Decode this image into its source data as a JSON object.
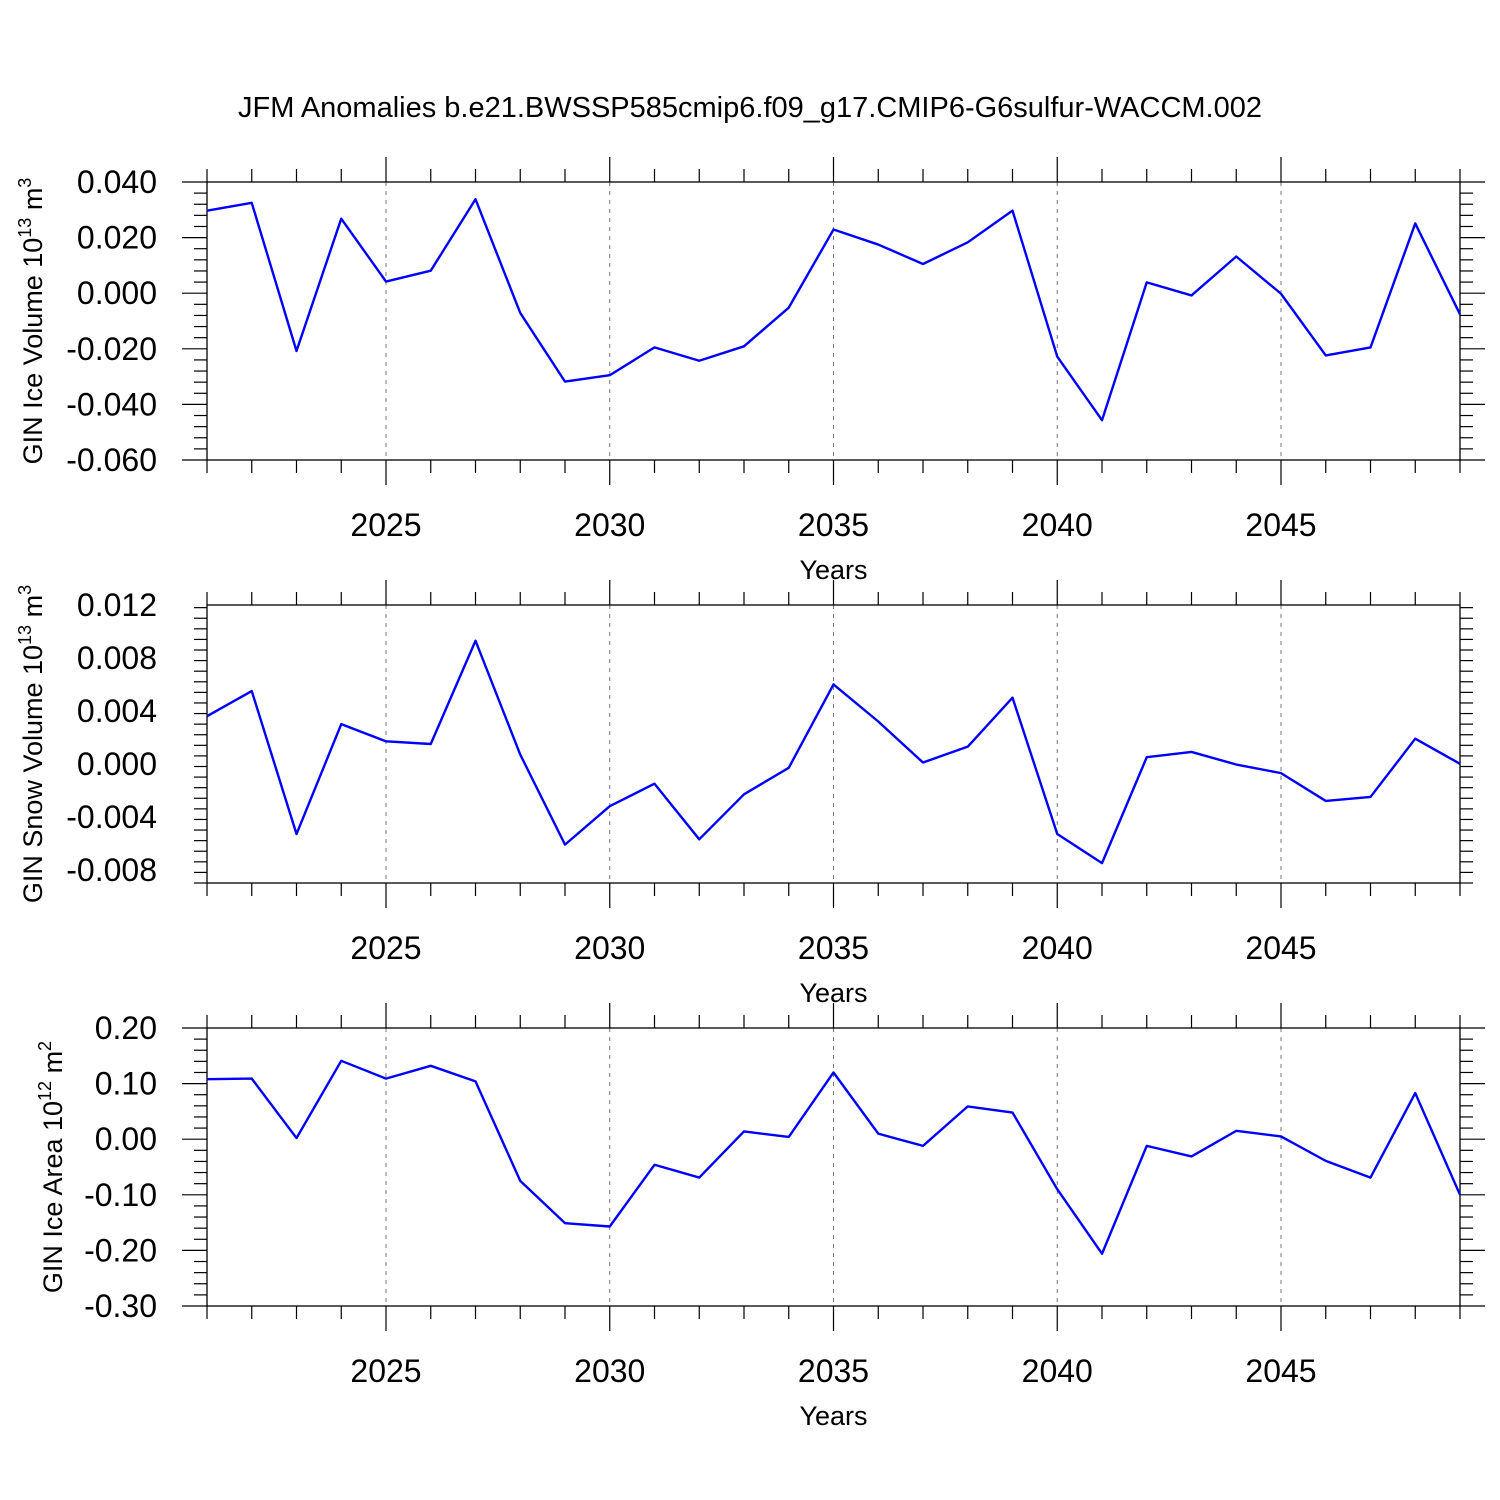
{
  "title": "JFM Anomalies b.e21.BWSSP585cmip6.f09_g17.CMIP6-G6sulfur-WACCM.002",
  "colors": {
    "line": "#0000ff",
    "axis": "#000000",
    "grid": "#777777"
  },
  "chart_data": [
    {
      "type": "line",
      "ylabel_main": "GIN Ice Volume 10",
      "ylabel_sup1": "13",
      "ylabel_mid": " m",
      "ylabel_sup2": "3",
      "xlabel": "Years",
      "xlim": [
        2021,
        2049
      ],
      "ylim": [
        -0.06,
        0.04
      ],
      "yticks": [
        -0.06,
        -0.04,
        -0.02,
        0.0,
        0.02,
        0.04
      ],
      "yticklabels": [
        "-0.060",
        "-0.040",
        "-0.020",
        "0.000",
        "0.020",
        "0.040"
      ],
      "xticks": [
        2025,
        2030,
        2035,
        2040,
        2045
      ],
      "xticklabels": [
        "2025",
        "2030",
        "2035",
        "2040",
        "2045"
      ],
      "x": [
        2021,
        2022,
        2023,
        2024,
        2025,
        2026,
        2027,
        2028,
        2029,
        2030,
        2031,
        2032,
        2033,
        2034,
        2035,
        2036,
        2037,
        2038,
        2039,
        2040,
        2041,
        2042,
        2043,
        2044,
        2045,
        2046,
        2047,
        2048,
        2049
      ],
      "values": [
        0.0297,
        0.0325,
        -0.0208,
        0.0268,
        0.0042,
        0.0081,
        0.0338,
        -0.0071,
        -0.0318,
        -0.0295,
        -0.0195,
        -0.0243,
        -0.0191,
        -0.0052,
        0.0229,
        0.0175,
        0.0105,
        0.0183,
        0.0297,
        -0.0228,
        -0.0457,
        0.0039,
        -0.0008,
        0.0132,
        -0.0002,
        -0.0224,
        -0.0195,
        0.0251,
        -0.0076
      ]
    },
    {
      "type": "line",
      "ylabel_main": "GIN Snow Volume 10",
      "ylabel_sup1": "13",
      "ylabel_mid": " m",
      "ylabel_sup2": "3",
      "xlabel": "Years",
      "xlim": [
        2021,
        2049
      ],
      "ylim": [
        -0.009,
        0.012
      ],
      "yticks": [
        -0.008,
        -0.004,
        0.0,
        0.004,
        0.008,
        0.012
      ],
      "yticklabels": [
        "-0.008",
        "-0.004",
        "0.000",
        "0.004",
        "0.008",
        "0.012"
      ],
      "xticks": [
        2025,
        2030,
        2035,
        2040,
        2045
      ],
      "xticklabels": [
        "2025",
        "2030",
        "2035",
        "2040",
        "2045"
      ],
      "x": [
        2021,
        2022,
        2023,
        2024,
        2025,
        2026,
        2027,
        2028,
        2029,
        2030,
        2031,
        2032,
        2033,
        2034,
        2035,
        2036,
        2037,
        2038,
        2039,
        2040,
        2041,
        2042,
        2043,
        2044,
        2045,
        2046,
        2047,
        2048,
        2049
      ],
      "values": [
        0.0036,
        0.0055,
        -0.0053,
        0.003,
        0.0017,
        0.0015,
        0.0093,
        0.0007,
        -0.0061,
        -0.0032,
        -0.0015,
        -0.0057,
        -0.0023,
        -0.0003,
        0.006,
        0.0032,
        0.0001,
        0.0013,
        0.005,
        -0.0053,
        -0.0075,
        0.0005,
        0.0009,
        -5e-05,
        -0.0007,
        -0.0028,
        -0.0025,
        0.0019,
        0.0
      ]
    },
    {
      "type": "line",
      "ylabel_main": "GIN Ice Area 10",
      "ylabel_sup1": "12",
      "ylabel_mid": " m",
      "ylabel_sup2": "2",
      "xlabel": "Years",
      "xlim": [
        2021,
        2049
      ],
      "ylim": [
        -0.3,
        0.2
      ],
      "yticks": [
        -0.3,
        -0.2,
        -0.1,
        0.0,
        0.1,
        0.2
      ],
      "yticklabels": [
        "-0.30",
        "-0.20",
        "-0.10",
        "0.00",
        "0.10",
        "0.20"
      ],
      "xticks": [
        2025,
        2030,
        2035,
        2040,
        2045
      ],
      "xticklabels": [
        "2025",
        "2030",
        "2035",
        "2040",
        "2045"
      ],
      "x": [
        2021,
        2022,
        2023,
        2024,
        2025,
        2026,
        2027,
        2028,
        2029,
        2030,
        2031,
        2032,
        2033,
        2034,
        2035,
        2036,
        2037,
        2038,
        2039,
        2040,
        2041,
        2042,
        2043,
        2044,
        2045,
        2046,
        2047,
        2048,
        2049
      ],
      "values": [
        0.108,
        0.109,
        0.002,
        0.141,
        0.109,
        0.132,
        0.104,
        -0.075,
        -0.151,
        -0.157,
        -0.046,
        -0.069,
        0.014,
        0.004,
        0.12,
        0.01,
        -0.012,
        0.059,
        0.048,
        -0.09,
        -0.206,
        -0.012,
        -0.031,
        0.015,
        0.005,
        -0.039,
        -0.069,
        0.083,
        -0.1
      ]
    }
  ]
}
